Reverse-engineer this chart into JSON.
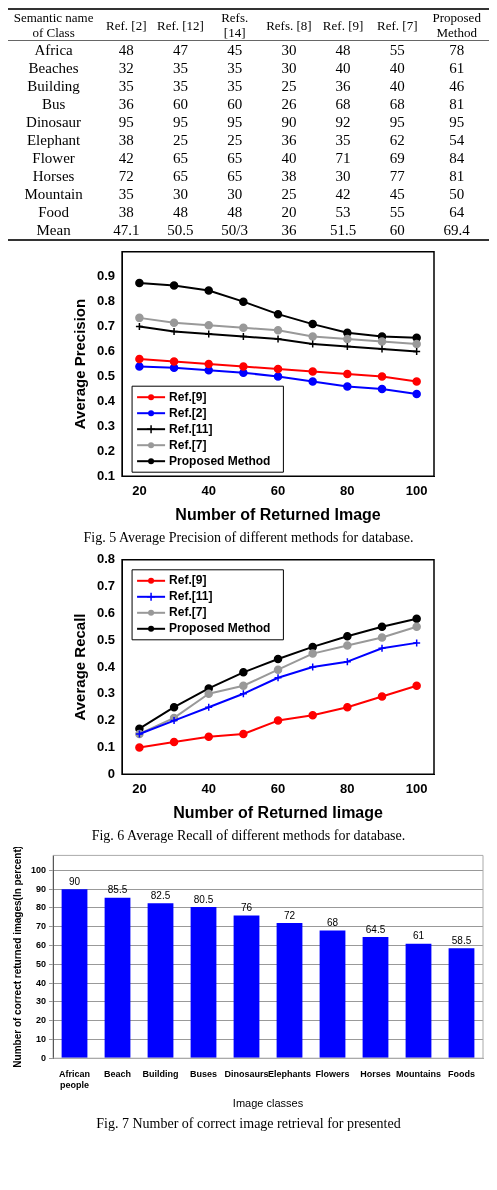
{
  "chart_data": [
    {
      "type": "heatmap",
      "ylabel": "Semantic name of Class",
      "categories": [
        "Ref. [2]",
        "Ref. [12]",
        "Refs. [14]",
        "Refs. [8]",
        "Ref. [9]",
        "Ref. [7]",
        "Proposed Method"
      ],
      "y_categories": [
        "Africa",
        "Beaches",
        "Building",
        "Bus",
        "Dinosaur",
        "Elephant",
        "Flower",
        "Horses",
        "Mountain",
        "Food",
        "Mean"
      ],
      "cells": [
        [
          48,
          47,
          45,
          30,
          48,
          55,
          78
        ],
        [
          32,
          35,
          35,
          30,
          40,
          40,
          61
        ],
        [
          35,
          35,
          35,
          25,
          36,
          40,
          46
        ],
        [
          36,
          60,
          60,
          26,
          68,
          68,
          81
        ],
        [
          95,
          95,
          95,
          90,
          92,
          95,
          95
        ],
        [
          38,
          25,
          25,
          36,
          35,
          62,
          54
        ],
        [
          42,
          65,
          65,
          40,
          71,
          69,
          84
        ],
        [
          72,
          65,
          65,
          38,
          30,
          77,
          81
        ],
        [
          35,
          30,
          30,
          25,
          42,
          45,
          50
        ],
        [
          38,
          48,
          48,
          20,
          53,
          55,
          64
        ],
        [
          47.1,
          50.5,
          null,
          36,
          51.5,
          60,
          69.4
        ]
      ],
      "cell_labels": [
        [
          "48",
          "47",
          "45",
          "30",
          "48",
          "55",
          "78"
        ],
        [
          "32",
          "35",
          "35",
          "30",
          "40",
          "40",
          "61"
        ],
        [
          "35",
          "35",
          "35",
          "25",
          "36",
          "40",
          "46"
        ],
        [
          "36",
          "60",
          "60",
          "26",
          "68",
          "68",
          "81"
        ],
        [
          "95",
          "95",
          "95",
          "90",
          "92",
          "95",
          "95"
        ],
        [
          "38",
          "25",
          "25",
          "36",
          "35",
          "62",
          "54"
        ],
        [
          "42",
          "65",
          "65",
          "40",
          "71",
          "69",
          "84"
        ],
        [
          "72",
          "65",
          "65",
          "38",
          "30",
          "77",
          "81"
        ],
        [
          "35",
          "30",
          "30",
          "25",
          "42",
          "45",
          "50"
        ],
        [
          "38",
          "48",
          "48",
          "20",
          "53",
          "55",
          "64"
        ],
        [
          "47.1",
          "50.5",
          "50/3",
          "36",
          "51.5",
          "60",
          "69.4"
        ]
      ]
    },
    {
      "type": "line",
      "xlabel": "Number of Returned Image",
      "ylabel": "Average Precision",
      "x": [
        20,
        30,
        40,
        50,
        60,
        70,
        80,
        90,
        100
      ],
      "xlim": [
        15,
        105
      ],
      "xticks": [
        20,
        40,
        60,
        80,
        100
      ],
      "ylim": [
        0.1,
        1.0
      ],
      "yticks": [
        0.1,
        0.2,
        0.3,
        0.4,
        0.5,
        0.6,
        0.7,
        0.8,
        0.9
      ],
      "grid": false,
      "legend": "bottom left",
      "series": [
        {
          "name": "Ref.[9]",
          "color": "#ff0000",
          "marker": "circle",
          "values": [
            0.57,
            0.56,
            0.55,
            0.54,
            0.53,
            0.52,
            0.51,
            0.5,
            0.48
          ]
        },
        {
          "name": "Ref.[2]",
          "color": "#0000ff",
          "marker": "circle",
          "values": [
            0.54,
            0.535,
            0.525,
            0.515,
            0.5,
            0.48,
            0.46,
            0.45,
            0.43
          ]
        },
        {
          "name": "Ref.[11]",
          "color": "#000000",
          "marker": "cross",
          "values": [
            0.7,
            0.68,
            0.67,
            0.66,
            0.65,
            0.63,
            0.62,
            0.61,
            0.6
          ]
        },
        {
          "name": "Ref.[7]",
          "color": "#999999",
          "marker": "circle",
          "values": [
            0.735,
            0.715,
            0.705,
            0.695,
            0.685,
            0.66,
            0.65,
            0.64,
            0.63
          ]
        },
        {
          "name": "Proposed Method",
          "color": "#000000",
          "marker": "circle",
          "values": [
            0.875,
            0.865,
            0.845,
            0.8,
            0.75,
            0.71,
            0.675,
            0.66,
            0.655
          ]
        }
      ],
      "annotations": [
        "Fig. 5 Average Precision of different methods for database."
      ]
    },
    {
      "type": "line",
      "xlabel": "Number of Returned Iimage",
      "ylabel": "Average Recall",
      "x": [
        20,
        30,
        40,
        50,
        60,
        70,
        80,
        90,
        100
      ],
      "xlim": [
        15,
        105
      ],
      "xticks": [
        20,
        40,
        60,
        80,
        100
      ],
      "ylim": [
        0,
        0.8
      ],
      "yticks": [
        0,
        0.1,
        0.2,
        0.3,
        0.4,
        0.5,
        0.6,
        0.7,
        0.8
      ],
      "grid": false,
      "legend": "top left",
      "series": [
        {
          "name": "Ref.[9]",
          "color": "#ff0000",
          "marker": "circle",
          "values": [
            0.1,
            0.12,
            0.14,
            0.15,
            0.2,
            0.22,
            0.25,
            0.29,
            0.33
          ]
        },
        {
          "name": "Ref.[11]",
          "color": "#0000ff",
          "marker": "cross",
          "values": [
            0.15,
            0.2,
            0.25,
            0.3,
            0.36,
            0.4,
            0.42,
            0.47,
            0.49
          ]
        },
        {
          "name": "Ref.[7]",
          "color": "#999999",
          "marker": "circle",
          "values": [
            0.15,
            0.21,
            0.3,
            0.33,
            0.39,
            0.45,
            0.48,
            0.51,
            0.55
          ]
        },
        {
          "name": "Proposed Method",
          "color": "#000000",
          "marker": "circle",
          "values": [
            0.17,
            0.25,
            0.32,
            0.38,
            0.43,
            0.475,
            0.515,
            0.55,
            0.58
          ]
        }
      ],
      "annotations": [
        "Fig. 6 Average Recall of different methods for database."
      ]
    },
    {
      "type": "bar",
      "xlabel": "Image classes",
      "ylabel": "Number of correct returned images(In percent)",
      "categories": [
        "African people",
        "Beach",
        "Building",
        "Buses",
        "Dinosaurs",
        "Elephants",
        "Flowers",
        "Horses",
        "Mountains",
        "Foods"
      ],
      "values": [
        90,
        85.5,
        82.5,
        80.5,
        76,
        72,
        68,
        64.5,
        61,
        58.5
      ],
      "color": "#0000ff",
      "ylim": [
        0,
        108
      ],
      "yticks": [
        0,
        10,
        20,
        30,
        40,
        50,
        60,
        70,
        80,
        90,
        100
      ],
      "grid": "y",
      "data_labels": true,
      "annotations": [
        "Fig. 7 Number of correct image retrieval for presented"
      ]
    }
  ]
}
